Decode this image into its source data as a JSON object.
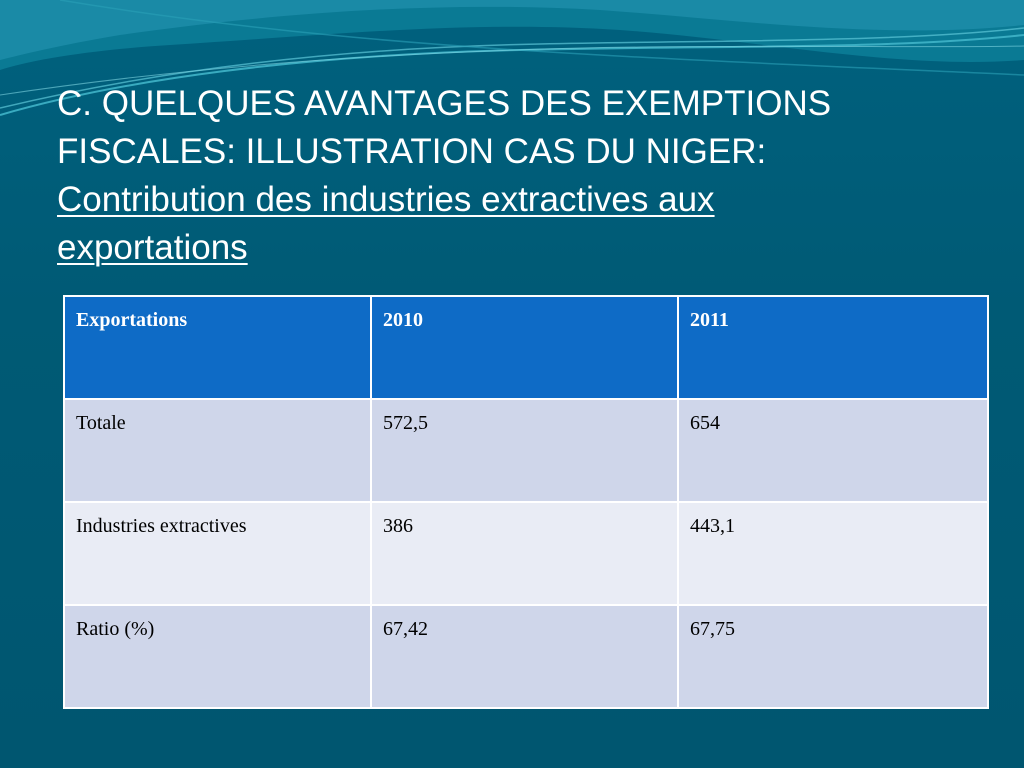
{
  "slide": {
    "title_line1": "C. QUELQUES AVANTAGES DES EXEMPTIONS",
    "title_line2": "FISCALES: ILLUSTRATION CAS DU NIGER:",
    "subtitle_line1": "Contribution des industries extractives aux",
    "subtitle_line2": "exportations"
  },
  "table": {
    "headers": [
      "Exportations",
      "2010",
      "2011"
    ],
    "rows": [
      [
        "Totale",
        "572,5",
        "654"
      ],
      [
        "Industries extractives",
        "386",
        "443,1"
      ],
      [
        "Ratio (%)",
        "67,42",
        "67,75"
      ]
    ]
  },
  "colors": {
    "background": "#005a75",
    "header_fill": "#0e6bc6",
    "row_odd_fill": "#cfd6ea",
    "row_even_fill": "#e9ecf5",
    "wave_light": "#3fb4c8"
  }
}
